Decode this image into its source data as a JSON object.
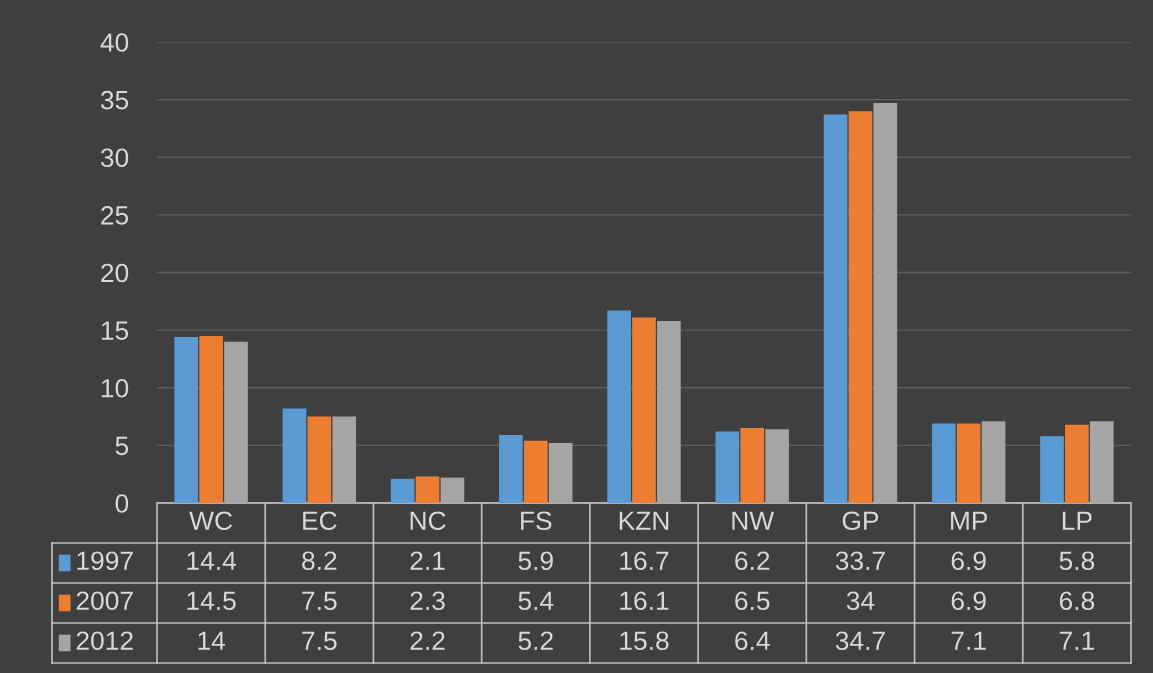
{
  "chart_data": {
    "type": "bar",
    "categories": [
      "WC",
      "EC",
      "NC",
      "FS",
      "KZN",
      "NW",
      "GP",
      "MP",
      "LP"
    ],
    "series": [
      {
        "name": "1997",
        "color": "#5b9bd5",
        "values": [
          14.4,
          8.2,
          2.1,
          5.9,
          16.7,
          6.2,
          33.7,
          6.9,
          5.8
        ]
      },
      {
        "name": "2007",
        "color": "#ed7d31",
        "values": [
          14.5,
          7.5,
          2.3,
          5.4,
          16.1,
          6.5,
          34,
          6.9,
          6.8
        ]
      },
      {
        "name": "2012",
        "color": "#a5a5a5",
        "values": [
          14,
          7.5,
          2.2,
          5.2,
          15.8,
          6.4,
          34.7,
          7.1,
          7.1
        ]
      }
    ],
    "ylim": [
      0,
      40
    ],
    "yticks": [
      0,
      5,
      10,
      15,
      20,
      25,
      30,
      35,
      40
    ],
    "grid": "y",
    "data_labels": true,
    "legend": "bottom left"
  }
}
